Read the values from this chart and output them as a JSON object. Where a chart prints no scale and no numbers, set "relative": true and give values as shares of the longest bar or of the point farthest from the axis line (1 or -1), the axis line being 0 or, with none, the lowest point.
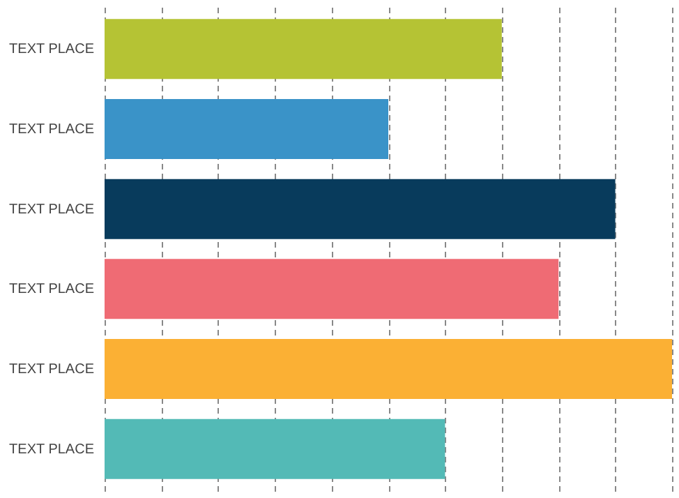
{
  "chart_data": {
    "type": "bar",
    "orientation": "horizontal",
    "relative": true,
    "grid": "x",
    "categories": [
      "TEXT PLACE",
      "TEXT PLACE",
      "TEXT PLACE",
      "TEXT PLACE",
      "TEXT PLACE",
      "TEXT PLACE"
    ],
    "values": [
      0.7,
      0.5,
      0.9,
      0.8,
      1.0,
      0.6
    ],
    "colors": [
      "#b5c334",
      "#3a93c8",
      "#083b5c",
      "#ef6b74",
      "#fbb034",
      "#53bab6"
    ]
  }
}
